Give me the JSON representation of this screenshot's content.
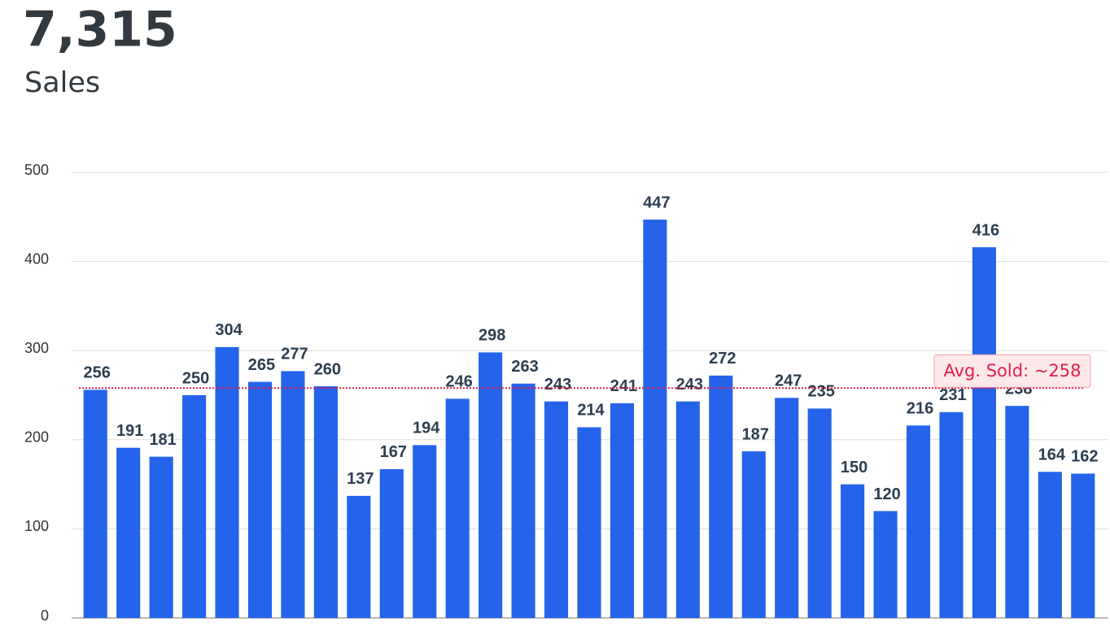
{
  "kpi": {
    "value": "7,315",
    "label": "Sales"
  },
  "chart_data": {
    "type": "bar",
    "categories": [
      null,
      null,
      null,
      null,
      null,
      null,
      null,
      null,
      null,
      null,
      null,
      null,
      null,
      null,
      null,
      null,
      null,
      null,
      null,
      null,
      null,
      null,
      null,
      null,
      null,
      null,
      null,
      null,
      null,
      null,
      null
    ],
    "values": [
      256,
      191,
      181,
      250,
      304,
      265,
      277,
      260,
      137,
      167,
      194,
      246,
      298,
      263,
      243,
      214,
      241,
      447,
      243,
      272,
      187,
      247,
      235,
      150,
      120,
      216,
      231,
      416,
      238,
      164,
      162
    ],
    "color": "#2563eb",
    "ylim": [
      0,
      500
    ],
    "yticks": [
      0,
      100,
      200,
      300,
      400,
      500
    ],
    "grid": true,
    "annotations": [
      {
        "label": "Avg. Sold: ~258",
        "value": 258,
        "color": "#e11d48"
      }
    ]
  }
}
